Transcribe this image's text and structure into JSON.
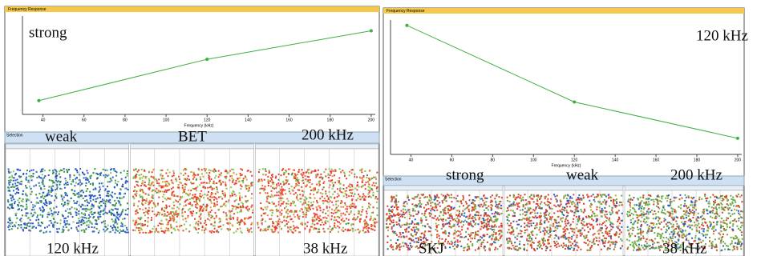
{
  "panels": [
    {
      "window_title": "Frequency Response",
      "selection_title": "Selection",
      "chart": {
        "type": "line",
        "x_label": "Frequency (kHz)",
        "x": [
          38,
          120,
          200
        ],
        "values": [
          0.14,
          0.56,
          0.85
        ],
        "color": "#3cb043",
        "xlim": [
          30,
          202
        ],
        "ylim": [
          0,
          1
        ],
        "xticks": [
          40,
          60,
          80,
          100,
          120,
          140,
          160,
          180,
          200
        ]
      },
      "annotations": [
        "strong",
        "weak",
        "BET",
        "200 kHz",
        "120 kHz",
        "38 kHz"
      ]
    },
    {
      "window_title": "Frequency Response",
      "selection_title": "Selection",
      "chart": {
        "type": "line",
        "x_label": "Frequency (kHz)",
        "x": [
          38,
          120,
          200
        ],
        "values": [
          0.96,
          0.39,
          0.12
        ],
        "color": "#3cb043",
        "xlim": [
          30,
          202
        ],
        "ylim": [
          0,
          1
        ],
        "xticks": [
          40,
          60,
          80,
          100,
          120,
          140,
          160,
          180,
          200
        ]
      },
      "annotations": [
        "120 kHz",
        "strong",
        "weak",
        "200 kHz",
        "SKJ",
        "38 kHz"
      ]
    }
  ]
}
